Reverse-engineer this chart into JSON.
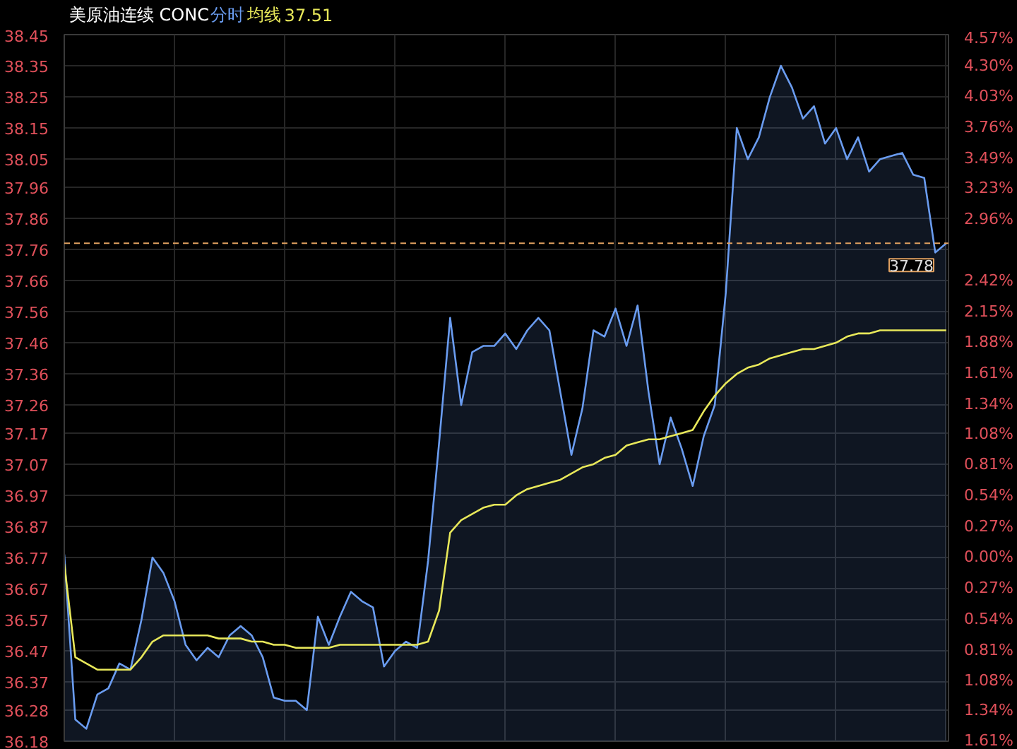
{
  "chart_data": {
    "type": "line",
    "title": "美原油连续 CONC",
    "tick_labels": "y",
    "grid": true,
    "categories": [
      null,
      null,
      null,
      null,
      null,
      null,
      null,
      null,
      null,
      null,
      null,
      null,
      null,
      null,
      null,
      null,
      null,
      null,
      null,
      null,
      null,
      null,
      null,
      null,
      null,
      null,
      null,
      null,
      null,
      null,
      null,
      null,
      null,
      null,
      null,
      null,
      null,
      null,
      null,
      null,
      null,
      null,
      null,
      null,
      null,
      null,
      null,
      null,
      null,
      null,
      null,
      null,
      null,
      null,
      null,
      null,
      null,
      null,
      null,
      null,
      null,
      null,
      null,
      null,
      null,
      null,
      null,
      null,
      null,
      null,
      null,
      null,
      null,
      null,
      null,
      null,
      null,
      null,
      null,
      null,
      null
    ],
    "series": [
      {
        "name": "分时",
        "type": "area",
        "color": "#6a9cf0",
        "values": [
          36.78,
          36.25,
          36.22,
          36.33,
          36.35,
          36.43,
          36.41,
          36.57,
          36.77,
          36.72,
          36.63,
          36.49,
          36.44,
          36.48,
          36.45,
          36.52,
          36.55,
          36.52,
          36.45,
          36.32,
          36.31,
          36.31,
          36.28,
          36.58,
          36.49,
          36.58,
          36.66,
          36.63,
          36.61,
          36.42,
          36.47,
          36.5,
          36.48,
          36.76,
          37.14,
          37.54,
          37.26,
          37.43,
          37.45,
          37.45,
          37.49,
          37.44,
          37.5,
          37.54,
          37.5,
          37.3,
          37.1,
          37.25,
          37.5,
          37.48,
          37.57,
          37.45,
          37.58,
          37.3,
          37.07,
          37.22,
          37.12,
          37.0,
          37.16,
          37.26,
          37.62,
          38.15,
          38.05,
          38.12,
          38.25,
          38.35,
          38.28,
          38.18,
          38.22,
          38.1,
          38.15,
          38.05,
          38.12,
          38.01,
          38.05,
          38.06,
          38.07,
          38.0,
          37.99,
          37.75,
          37.78
        ]
      },
      {
        "name": "均线",
        "color": "#e8e85a",
        "values": [
          36.75,
          36.45,
          36.43,
          36.41,
          36.41,
          36.41,
          36.41,
          36.45,
          36.5,
          36.52,
          36.52,
          36.52,
          36.52,
          36.52,
          36.51,
          36.51,
          36.51,
          36.5,
          36.5,
          36.49,
          36.49,
          36.48,
          36.48,
          36.48,
          36.48,
          36.49,
          36.49,
          36.49,
          36.49,
          36.49,
          36.49,
          36.49,
          36.49,
          36.5,
          36.6,
          36.85,
          36.89,
          36.91,
          36.93,
          36.94,
          36.94,
          36.97,
          36.99,
          37.0,
          37.01,
          37.02,
          37.04,
          37.06,
          37.07,
          37.09,
          37.1,
          37.13,
          37.14,
          37.15,
          37.15,
          37.16,
          37.17,
          37.18,
          37.24,
          37.29,
          37.33,
          37.36,
          37.38,
          37.39,
          37.41,
          37.42,
          37.43,
          37.44,
          37.44,
          37.45,
          37.46,
          37.48,
          37.49,
          37.49,
          37.5,
          37.5,
          37.5,
          37.5,
          37.5,
          37.5,
          37.5
        ]
      }
    ],
    "annotations": [
      "37.51"
    ],
    "ylim": [
      36.18,
      38.45
    ],
    "yticks": [
      38.45,
      38.35,
      38.25,
      38.15,
      38.05,
      37.96,
      37.86,
      37.76,
      37.66,
      37.56,
      37.46,
      37.36,
      37.26,
      37.17,
      37.07,
      36.97,
      36.87,
      36.77,
      36.67,
      36.57,
      36.47,
      36.37,
      36.28,
      36.18
    ],
    "y2lim": [
      -1.61,
      4.57
    ],
    "y2ticks": [
      {
        "value": 4.57,
        "label": "4.57%"
      },
      {
        "value": 4.3,
        "label": "4.30%"
      },
      {
        "value": 4.03,
        "label": "4.03%"
      },
      {
        "value": 3.76,
        "label": "3.76%"
      },
      {
        "value": 3.49,
        "label": "3.49%"
      },
      {
        "value": 3.23,
        "label": "3.23%"
      },
      {
        "value": 2.96,
        "label": "2.96%"
      },
      {
        "value": 2.42,
        "label": "2.42%"
      },
      {
        "value": 2.15,
        "label": "2.15%"
      },
      {
        "value": 1.88,
        "label": "1.88%"
      },
      {
        "value": 1.61,
        "label": "1.61%"
      },
      {
        "value": 1.34,
        "label": "1.34%"
      },
      {
        "value": 1.08,
        "label": "1.08%"
      },
      {
        "value": 0.81,
        "label": "0.81%"
      },
      {
        "value": 0.54,
        "label": "0.54%"
      },
      {
        "value": 0.27,
        "label": "0.27%"
      },
      {
        "value": 0.0,
        "label": "0.00%"
      },
      {
        "value": -0.27,
        "label": "0.27%"
      },
      {
        "value": -0.54,
        "label": "0.54%"
      },
      {
        "value": -0.81,
        "label": "0.81%"
      },
      {
        "value": -1.08,
        "label": "1.08%"
      },
      {
        "value": -1.34,
        "label": "1.34%"
      },
      {
        "value": -1.61,
        "label": "1.61%"
      }
    ],
    "ref_lines": [
      {
        "axis": "y",
        "value": 37.78,
        "label": "37.78",
        "color": "#e0a060",
        "line_style": "dashed"
      }
    ]
  }
}
